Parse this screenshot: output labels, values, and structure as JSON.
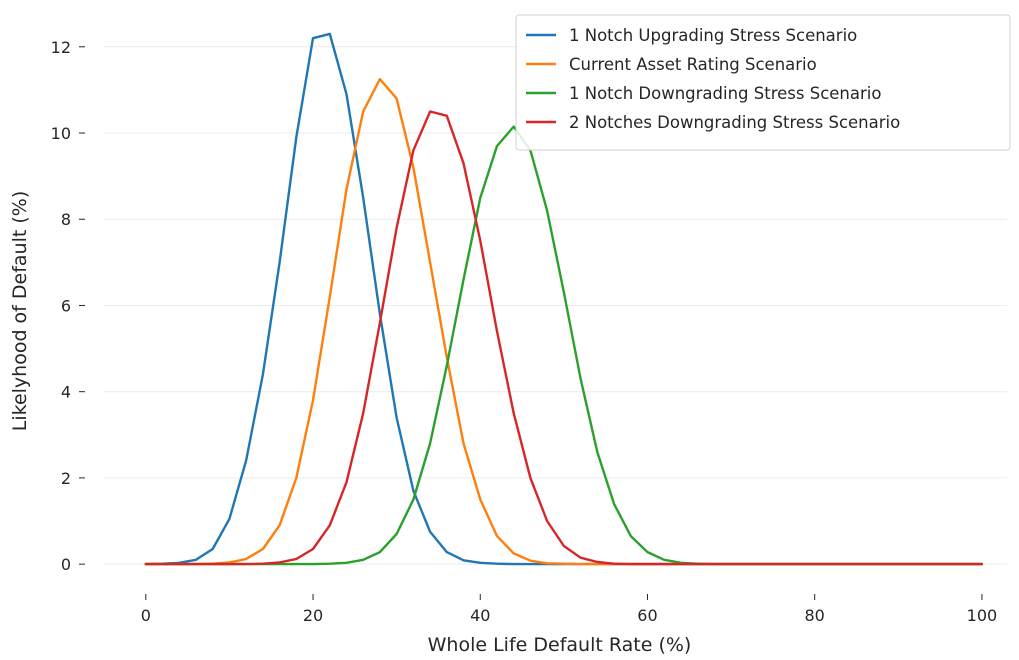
{
  "chart_data": {
    "type": "line",
    "title": "",
    "xlabel": "Whole Life Default Rate (%)",
    "ylabel": "Likelyhood of Default (%)",
    "xlim": [
      -5,
      103
    ],
    "ylim": [
      -0.6,
      12.9
    ],
    "xticks": [
      0,
      20,
      40,
      60,
      80,
      100
    ],
    "yticks": [
      0,
      2,
      4,
      6,
      8,
      10,
      12
    ],
    "xtick_labels": [
      "0",
      "20",
      "40",
      "60",
      "80",
      "100"
    ],
    "ytick_labels": [
      "0",
      "2",
      "4",
      "6",
      "8",
      "10",
      "12"
    ],
    "grid": "horizontal",
    "legend_position": "top-right",
    "x": [
      0,
      2,
      4,
      6,
      8,
      10,
      12,
      14,
      16,
      18,
      20,
      22,
      24,
      26,
      28,
      30,
      32,
      34,
      36,
      38,
      40,
      42,
      44,
      46,
      48,
      50,
      52,
      54,
      56,
      58,
      60,
      62,
      64,
      66,
      68,
      70,
      72,
      74,
      76,
      78,
      80,
      82,
      84,
      86,
      88,
      90,
      92,
      94,
      96,
      98,
      100
    ],
    "series": [
      {
        "name": "1 Notch Upgrading Stress Scenario",
        "color": "#1f77b4",
        "values": [
          0,
          0.01,
          0.03,
          0.1,
          0.35,
          1.05,
          2.4,
          4.4,
          7.0,
          9.9,
          12.2,
          12.3,
          10.9,
          8.5,
          5.8,
          3.4,
          1.7,
          0.75,
          0.28,
          0.09,
          0.03,
          0.01,
          0,
          0,
          0,
          0,
          0,
          0,
          0,
          0,
          0,
          0,
          0,
          0,
          0,
          0,
          0,
          0,
          0,
          0,
          0,
          0,
          0,
          0,
          0,
          0,
          0,
          0,
          0,
          0,
          0
        ]
      },
      {
        "name": "Current Asset Rating Scenario",
        "color": "#ff7f0e",
        "values": [
          0,
          0,
          0,
          0,
          0.01,
          0.04,
          0.12,
          0.35,
          0.9,
          2.0,
          3.8,
          6.2,
          8.7,
          10.5,
          11.25,
          10.8,
          9.2,
          7.0,
          4.8,
          2.8,
          1.5,
          0.65,
          0.25,
          0.08,
          0.02,
          0.01,
          0,
          0,
          0,
          0,
          0,
          0,
          0,
          0,
          0,
          0,
          0,
          0,
          0,
          0,
          0,
          0,
          0,
          0,
          0,
          0,
          0,
          0,
          0,
          0,
          0
        ]
      },
      {
        "name": "1 Notch Downgrading Stress Scenario",
        "color": "#2ca02c",
        "values": [
          0,
          0,
          0,
          0,
          0,
          0,
          0,
          0,
          0,
          0,
          0,
          0.01,
          0.03,
          0.1,
          0.28,
          0.7,
          1.5,
          2.8,
          4.6,
          6.6,
          8.5,
          9.7,
          10.15,
          9.6,
          8.2,
          6.3,
          4.3,
          2.6,
          1.4,
          0.65,
          0.28,
          0.1,
          0.03,
          0.01,
          0,
          0,
          0,
          0,
          0,
          0,
          0,
          0,
          0,
          0,
          0,
          0,
          0,
          0,
          0,
          0,
          0
        ]
      },
      {
        "name": "2 Notches Downgrading Stress Scenario",
        "color": "#d62728",
        "values": [
          0,
          0,
          0,
          0,
          0,
          0,
          0,
          0.01,
          0.04,
          0.12,
          0.35,
          0.9,
          1.9,
          3.5,
          5.6,
          7.8,
          9.6,
          10.5,
          10.4,
          9.3,
          7.5,
          5.4,
          3.5,
          2.0,
          1.0,
          0.42,
          0.15,
          0.05,
          0.01,
          0,
          0,
          0,
          0,
          0,
          0,
          0,
          0,
          0,
          0,
          0,
          0,
          0,
          0,
          0,
          0,
          0,
          0,
          0,
          0,
          0,
          0
        ]
      }
    ]
  }
}
